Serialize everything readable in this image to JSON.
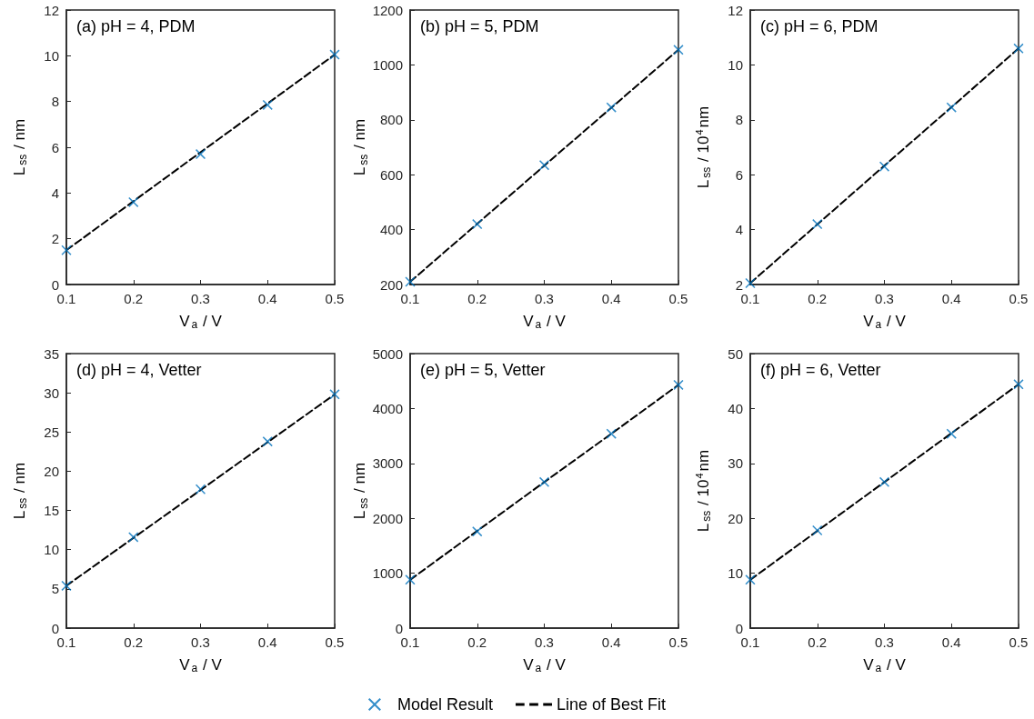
{
  "chart_data": [
    {
      "type": "scatter",
      "title": "(a) pH = 4, PDM",
      "xlabel": "V$_{a}$ / V",
      "ylabel": "L$_{ss}$ / nm",
      "x": [
        0.1,
        0.2,
        0.3,
        0.4,
        0.5
      ],
      "xlim": [
        0.1,
        0.5
      ],
      "xticks": [
        0.1,
        0.2,
        0.3,
        0.4,
        0.5
      ],
      "ylim": [
        0,
        12
      ],
      "yticks": [
        0,
        2,
        4,
        6,
        8,
        10,
        12
      ],
      "series": [
        {
          "color": "#0072bd",
          "marker": "cross",
          "values": [
            1.5,
            3.6,
            5.7,
            7.85,
            10.05
          ]
        },
        {
          "type": "line",
          "color": "#000000",
          "marker": "none",
          "line_style": "dashed",
          "values": [
            1.5,
            3.64,
            5.78,
            7.91,
            10.05
          ]
        }
      ]
    },
    {
      "type": "scatter",
      "title": "(b) pH = 5, PDM",
      "xlabel": "V$_{a}$ / V",
      "ylabel": "L$_{ss}$ / nm",
      "x": [
        0.1,
        0.2,
        0.3,
        0.4,
        0.5
      ],
      "xlim": [
        0.1,
        0.5
      ],
      "xticks": [
        0.1,
        0.2,
        0.3,
        0.4,
        0.5
      ],
      "ylim": [
        200,
        1200
      ],
      "yticks": [
        200,
        400,
        600,
        800,
        1000,
        1200
      ],
      "series": [
        {
          "color": "#0072bd",
          "marker": "cross",
          "values": [
            210,
            420,
            635,
            845,
            1055
          ]
        },
        {
          "type": "line",
          "color": "#000000",
          "marker": "none",
          "line_style": "dashed",
          "values": [
            210,
            421,
            633,
            844,
            1055
          ]
        }
      ]
    },
    {
      "type": "scatter",
      "title": "(c) pH = 6, PDM",
      "xlabel": "V$_{a}$ / V",
      "ylabel": "L$_{ss}$ / 10$^{4}$nm",
      "x": [
        0.1,
        0.2,
        0.3,
        0.4,
        0.5
      ],
      "xlim": [
        0.1,
        0.5
      ],
      "xticks": [
        0.1,
        0.2,
        0.3,
        0.4,
        0.5
      ],
      "ylim": [
        2,
        12
      ],
      "yticks": [
        2,
        4,
        6,
        8,
        10,
        12
      ],
      "series": [
        {
          "color": "#0072bd",
          "marker": "cross",
          "values": [
            2.05,
            4.2,
            6.3,
            8.45,
            10.6
          ]
        },
        {
          "type": "line",
          "color": "#000000",
          "marker": "none",
          "line_style": "dashed",
          "values": [
            2.05,
            4.19,
            6.33,
            8.46,
            10.6
          ]
        }
      ]
    },
    {
      "type": "scatter",
      "title": "(d) pH = 4, Vetter",
      "xlabel": "V$_{a}$ / V",
      "ylabel": "L$_{ss}$ / nm",
      "x": [
        0.1,
        0.2,
        0.3,
        0.4,
        0.5
      ],
      "xlim": [
        0.1,
        0.5
      ],
      "xticks": [
        0.1,
        0.2,
        0.3,
        0.4,
        0.5
      ],
      "ylim": [
        0,
        35
      ],
      "yticks": [
        0,
        5,
        10,
        15,
        20,
        25,
        30,
        35
      ],
      "series": [
        {
          "color": "#0072bd",
          "marker": "cross",
          "values": [
            5.4,
            11.6,
            17.7,
            23.8,
            29.8
          ]
        },
        {
          "type": "line",
          "color": "#000000",
          "marker": "none",
          "line_style": "dashed",
          "values": [
            5.4,
            11.5,
            17.6,
            23.7,
            29.8
          ]
        }
      ]
    },
    {
      "type": "scatter",
      "title": "(e) pH = 5, Vetter",
      "xlabel": "V$_{a}$ / V",
      "ylabel": "L$_{ss}$ / nm",
      "x": [
        0.1,
        0.2,
        0.3,
        0.4,
        0.5
      ],
      "xlim": [
        0.1,
        0.5
      ],
      "xticks": [
        0.1,
        0.2,
        0.3,
        0.4,
        0.5
      ],
      "ylim": [
        0,
        5000
      ],
      "yticks": [
        0,
        1000,
        2000,
        3000,
        4000,
        5000
      ],
      "series": [
        {
          "color": "#0072bd",
          "marker": "cross",
          "values": [
            880,
            1760,
            2660,
            3540,
            4430
          ]
        },
        {
          "type": "line",
          "color": "#000000",
          "marker": "none",
          "line_style": "dashed",
          "values": [
            880,
            1770,
            2660,
            3540,
            4430
          ]
        }
      ]
    },
    {
      "type": "scatter",
      "title": "(f) pH = 6, Vetter",
      "xlabel": "V$_{a}$ / V",
      "ylabel": "L$_{ss}$ / 10$^{4}$nm",
      "x": [
        0.1,
        0.2,
        0.3,
        0.4,
        0.5
      ],
      "xlim": [
        0.1,
        0.5
      ],
      "xticks": [
        0.1,
        0.2,
        0.3,
        0.4,
        0.5
      ],
      "ylim": [
        0,
        50
      ],
      "yticks": [
        0,
        10,
        20,
        30,
        40,
        50
      ],
      "legend": "bottom",
      "series": [
        {
          "name": "Model Result",
          "color": "#0072bd",
          "marker": "cross",
          "values": [
            8.8,
            17.8,
            26.6,
            35.4,
            44.4
          ]
        },
        {
          "type": "line",
          "name": "Line of Best Fit",
          "color": "#000000",
          "marker": "none",
          "line_style": "dashed",
          "values": [
            8.8,
            17.7,
            26.6,
            35.5,
            44.4
          ]
        }
      ]
    }
  ]
}
